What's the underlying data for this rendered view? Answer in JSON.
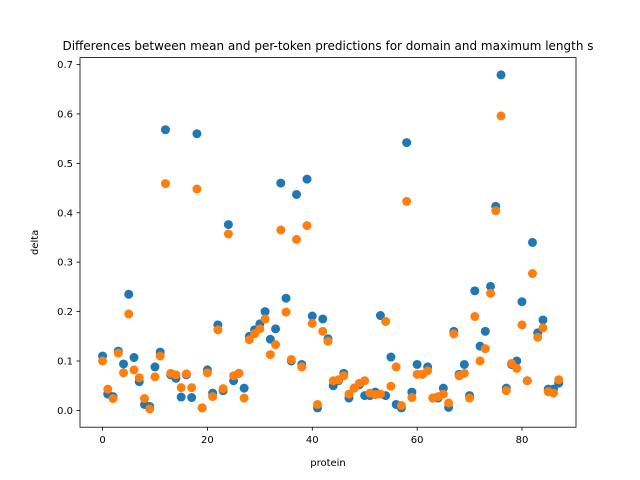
{
  "chart_data": {
    "type": "scatter",
    "title": "Differences between mean and per-token predictions for domain and maximum length s",
    "xlabel": "protein",
    "ylabel": "delta",
    "xlim": [
      -4.3,
      90.3
    ],
    "ylim": [
      -0.034,
      0.714
    ],
    "xticks": [
      0,
      20,
      40,
      60,
      80
    ],
    "yticks": [
      0.0,
      0.1,
      0.2,
      0.3,
      0.4,
      0.5,
      0.6,
      0.7
    ],
    "xtick_labels": [
      "0",
      "20",
      "40",
      "60",
      "80"
    ],
    "ytick_labels": [
      "0.0",
      "0.1",
      "0.2",
      "0.3",
      "0.4",
      "0.5",
      "0.6",
      "0.7"
    ],
    "grid": false,
    "x": [
      0,
      1,
      2,
      3,
      4,
      5,
      6,
      7,
      8,
      9,
      10,
      11,
      12,
      13,
      14,
      15,
      16,
      17,
      18,
      19,
      20,
      21,
      22,
      23,
      24,
      25,
      26,
      27,
      28,
      29,
      30,
      31,
      32,
      33,
      34,
      35,
      36,
      37,
      38,
      39,
      40,
      41,
      42,
      43,
      44,
      45,
      46,
      47,
      48,
      49,
      50,
      51,
      52,
      53,
      54,
      55,
      56,
      57,
      58,
      59,
      60,
      61,
      62,
      63,
      64,
      65,
      66,
      67,
      68,
      69,
      70,
      71,
      72,
      73,
      74,
      75,
      76,
      77,
      78,
      79,
      80,
      81,
      82,
      83,
      84,
      85,
      86,
      87
    ],
    "series": [
      {
        "color": "#1f77b4",
        "values": [
          0.11,
          0.033,
          0.028,
          0.12,
          0.094,
          0.235,
          0.107,
          0.058,
          0.012,
          0.008,
          0.088,
          0.118,
          0.568,
          0.072,
          0.065,
          0.027,
          0.072,
          0.026,
          0.56,
          0.005,
          0.082,
          0.035,
          0.173,
          0.04,
          0.376,
          0.06,
          0.075,
          0.045,
          0.15,
          0.163,
          0.175,
          0.2,
          0.144,
          0.165,
          0.46,
          0.227,
          0.1,
          0.437,
          0.093,
          0.468,
          0.191,
          0.005,
          0.185,
          0.145,
          0.05,
          0.06,
          0.075,
          0.025,
          0.045,
          0.052,
          0.03,
          0.03,
          0.037,
          0.192,
          0.03,
          0.108,
          0.012,
          0.005,
          0.542,
          0.037,
          0.093,
          0.073,
          0.088,
          0.025,
          0.025,
          0.045,
          0.006,
          0.16,
          0.073,
          0.093,
          0.03,
          0.242,
          0.13,
          0.16,
          0.251,
          0.413,
          0.679,
          0.045,
          0.093,
          0.1,
          0.22,
          0.06,
          0.34,
          0.157,
          0.183,
          0.043,
          0.043,
          0.055
        ]
      },
      {
        "color": "#ff7f0e",
        "values": [
          0.1,
          0.043,
          0.024,
          0.116,
          0.076,
          0.195,
          0.082,
          0.066,
          0.024,
          0.003,
          0.068,
          0.11,
          0.459,
          0.075,
          0.072,
          0.046,
          0.074,
          0.046,
          0.448,
          0.005,
          0.076,
          0.028,
          0.163,
          0.044,
          0.357,
          0.07,
          0.075,
          0.025,
          0.143,
          0.155,
          0.165,
          0.185,
          0.113,
          0.133,
          0.365,
          0.199,
          0.103,
          0.346,
          0.088,
          0.374,
          0.176,
          0.012,
          0.16,
          0.14,
          0.06,
          0.062,
          0.07,
          0.033,
          0.045,
          0.055,
          0.06,
          0.035,
          0.032,
          0.033,
          0.18,
          0.049,
          0.088,
          0.01,
          0.423,
          0.026,
          0.073,
          0.073,
          0.08,
          0.025,
          0.028,
          0.033,
          0.015,
          0.155,
          0.07,
          0.075,
          0.025,
          0.19,
          0.1,
          0.125,
          0.237,
          0.404,
          0.596,
          0.04,
          0.095,
          0.085,
          0.173,
          0.06,
          0.277,
          0.148,
          0.167,
          0.038,
          0.035,
          0.062
        ]
      }
    ]
  }
}
